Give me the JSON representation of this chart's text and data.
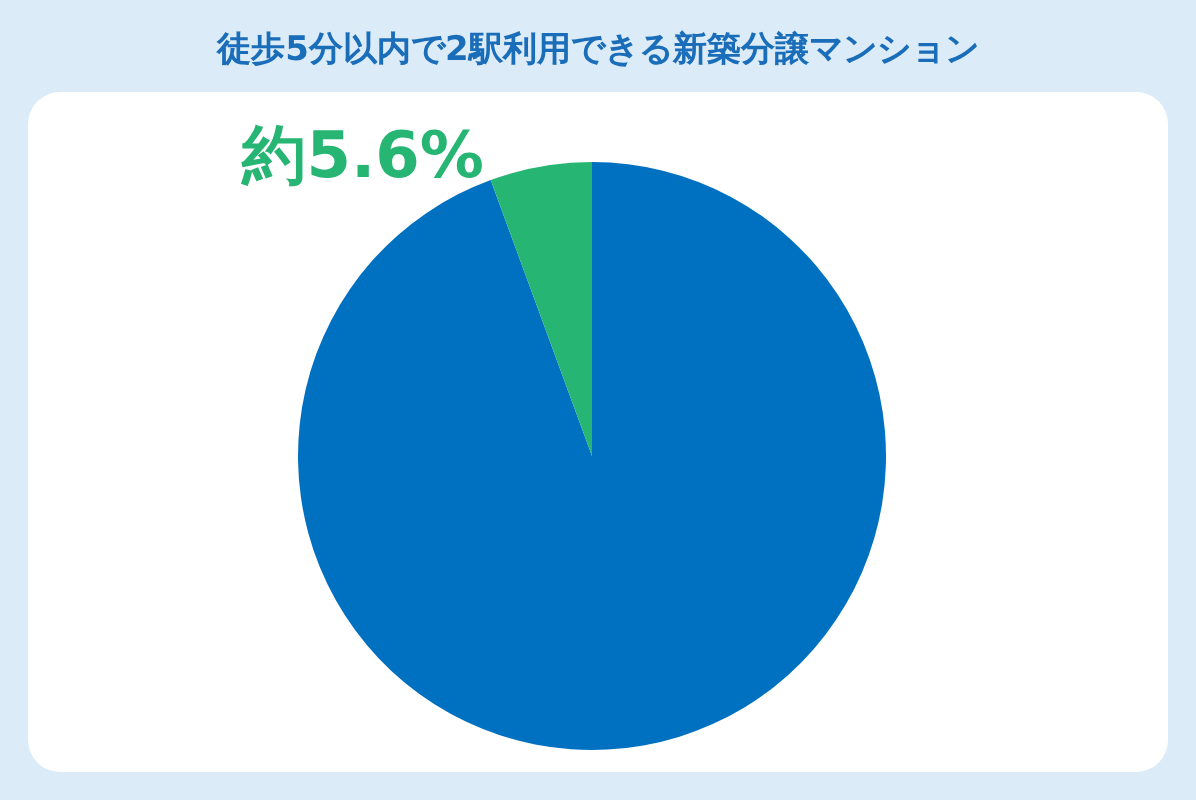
{
  "chart_data": {
    "type": "pie",
    "title": "徒歩5分以内で2駅利用できる新築分譲マンション",
    "categories": [
      null,
      null
    ],
    "values": [
      94.4,
      5.6
    ],
    "colors": [
      "#0070c0",
      "#27b574"
    ],
    "value_labels": [
      null,
      "約5.6%"
    ]
  }
}
